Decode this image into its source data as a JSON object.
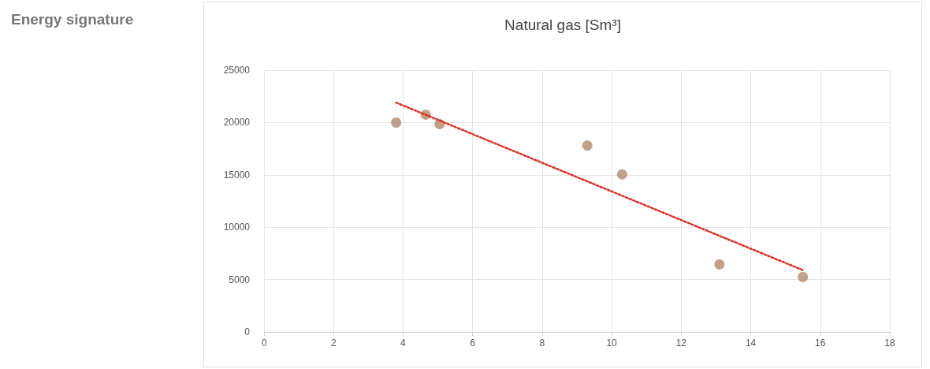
{
  "chart_data": {
    "type": "scatter",
    "title": "Natural gas [Sm³]",
    "subtitle": "Energy signature",
    "xlim": [
      0,
      18
    ],
    "xticks": [
      0,
      2,
      4,
      6,
      8,
      10,
      12,
      14,
      16,
      18
    ],
    "ylim": [
      0,
      25000
    ],
    "yticks": [
      0,
      5000,
      10000,
      15000,
      20000,
      25000
    ],
    "grid": true,
    "marker": "circle",
    "series": [
      {
        "color": "#b48a6c",
        "x": [
          3.8,
          4.65,
          5.05,
          9.3,
          10.3,
          13.1,
          15.5
        ],
        "values": [
          20000,
          20750,
          19850,
          17800,
          15050,
          6450,
          5250
        ]
      },
      {
        "type": "line",
        "color": "#e0302a",
        "line_style": "dotted",
        "marker": "none",
        "x": [
          3.8,
          15.5
        ],
        "values": [
          21900,
          5900
        ]
      }
    ]
  }
}
